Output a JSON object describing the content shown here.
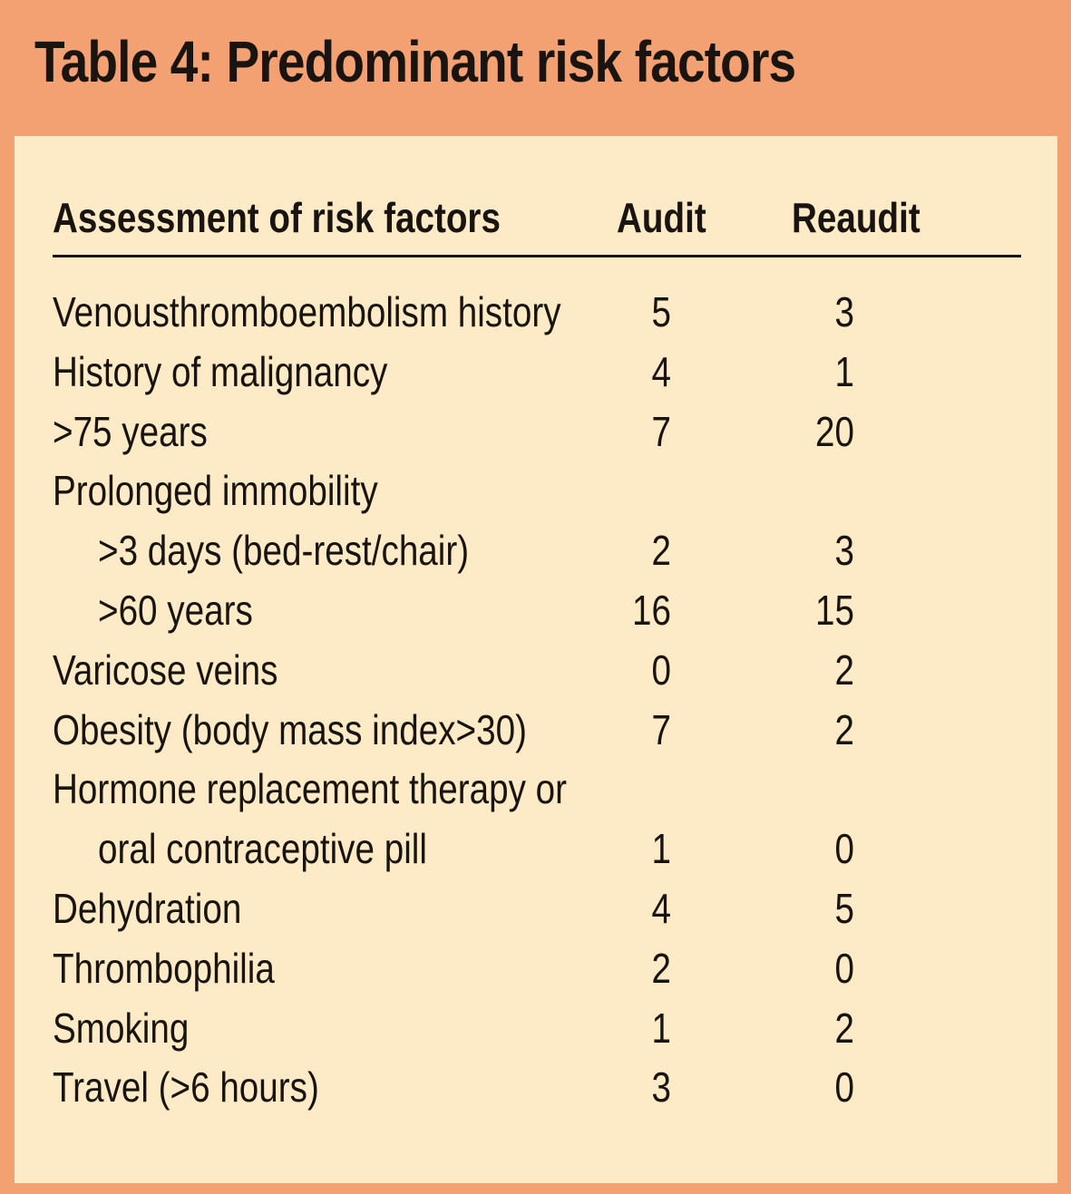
{
  "title": "Table 4: Predominant risk factors",
  "columns": [
    "Assessment of risk factors",
    "Audit",
    "Reaudit"
  ],
  "rows": [
    {
      "label": "Venousthromboembolism history",
      "audit": "5",
      "reaudit": "3",
      "indent": false
    },
    {
      "label": "History of malignancy",
      "audit": "4",
      "reaudit": "1",
      "indent": false
    },
    {
      "label": ">75 years",
      "audit": "7",
      "reaudit": "20",
      "indent": false
    },
    {
      "label": "Prolonged immobility",
      "audit": "",
      "reaudit": "",
      "indent": false
    },
    {
      "label": ">3 days (bed-rest/chair)",
      "audit": "2",
      "reaudit": "3",
      "indent": true
    },
    {
      "label": ">60 years",
      "audit": "16",
      "reaudit": "15",
      "indent": true
    },
    {
      "label": "Varicose veins",
      "audit": "0",
      "reaudit": "2",
      "indent": false
    },
    {
      "label": "Obesity (body mass index>30)",
      "audit": "7",
      "reaudit": "2",
      "indent": false
    },
    {
      "label": "Hormone replacement therapy or",
      "audit": "",
      "reaudit": "",
      "indent": false
    },
    {
      "label": "oral contraceptive pill",
      "audit": "1",
      "reaudit": "0",
      "indent": true
    },
    {
      "label": "Dehydration",
      "audit": "4",
      "reaudit": "5",
      "indent": false
    },
    {
      "label": "Thrombophilia",
      "audit": "2",
      "reaudit": "0",
      "indent": false
    },
    {
      "label": "Smoking",
      "audit": "1",
      "reaudit": "2",
      "indent": false
    },
    {
      "label": "Travel (>6 hours)",
      "audit": "3",
      "reaudit": "0",
      "indent": false
    }
  ],
  "colors": {
    "frame": "#f3a172",
    "panel": "#fcebc6",
    "text": "#1a1410"
  }
}
